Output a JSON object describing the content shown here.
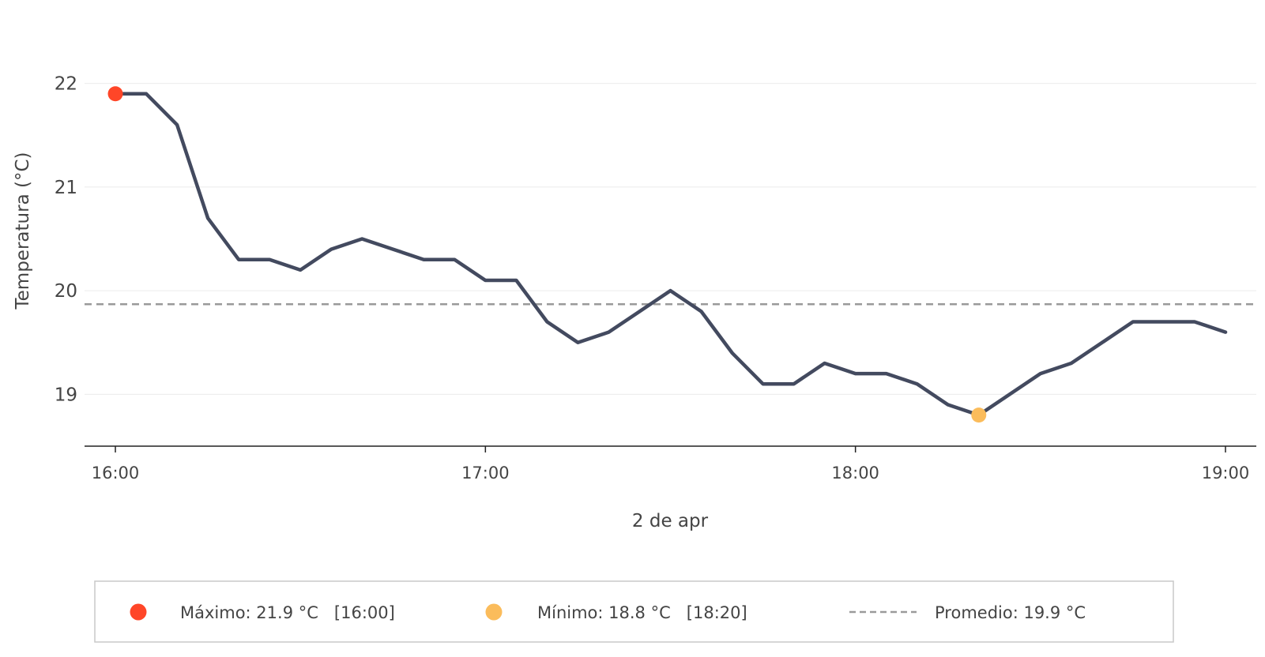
{
  "chart_data": {
    "type": "line",
    "title": "",
    "xlabel": "2 de apr",
    "ylabel": "Temperatura (°C)",
    "x_ticks": [
      "16:00",
      "17:00",
      "18:00",
      "19:00"
    ],
    "y_ticks": [
      19,
      20,
      21,
      22
    ],
    "xlim": [
      "15:55",
      "19:05"
    ],
    "ylim": [
      18.5,
      22.5
    ],
    "grid": "horizontal",
    "series": [
      {
        "x": [
          "16:00",
          "16:05",
          "16:10",
          "16:15",
          "16:20",
          "16:25",
          "16:30",
          "16:35",
          "16:40",
          "16:45",
          "16:50",
          "16:55",
          "17:00",
          "17:05",
          "17:10",
          "17:15",
          "17:20",
          "17:25",
          "17:30",
          "17:35",
          "17:40",
          "17:45",
          "17:50",
          "17:55",
          "18:00",
          "18:05",
          "18:10",
          "18:15",
          "18:20",
          "18:25",
          "18:30",
          "18:35",
          "18:40",
          "18:45",
          "18:50",
          "18:55",
          "19:00"
        ],
        "y": [
          21.9,
          21.9,
          21.6,
          20.7,
          20.3,
          20.3,
          20.2,
          20.4,
          20.5,
          20.4,
          20.3,
          20.3,
          20.1,
          20.1,
          19.7,
          19.5,
          19.6,
          19.8,
          20.0,
          19.8,
          19.4,
          19.1,
          19.1,
          19.3,
          19.2,
          19.2,
          19.1,
          18.9,
          18.8,
          19.0,
          19.2,
          19.3,
          19.5,
          19.7,
          19.7,
          19.7,
          19.6
        ],
        "color": "#434a5f"
      }
    ],
    "annotations": {
      "max": {
        "x": "16:00",
        "y": 21.9,
        "color": "#ff4628"
      },
      "min": {
        "x": "18:20",
        "y": 18.8,
        "color": "#fbbc5b"
      },
      "mean": {
        "y": 19.87,
        "color": "#9a9a9a"
      }
    },
    "legend": {
      "position": "bottom",
      "items": [
        {
          "label": "Máximo: 21.9 °C   [16:00]",
          "marker": "dot",
          "color": "#ff4628"
        },
        {
          "label": "Mínimo: 18.8 °C   [18:20]",
          "marker": "dot",
          "color": "#fbbc5b"
        },
        {
          "label": "Promedio: 19.9 °C",
          "marker": "dashed-line",
          "color": "#9a9a9a"
        }
      ]
    }
  }
}
